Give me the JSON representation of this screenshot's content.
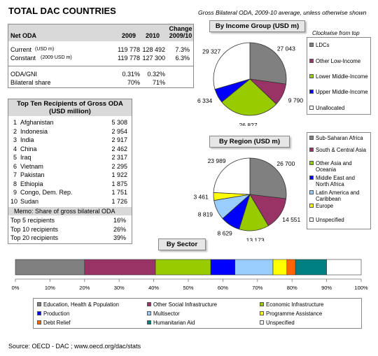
{
  "title": "TOTAL DAC COUNTRIES",
  "subtitle": "Gross Bilateral ODA, 2009-10 average, unless otherwise shown",
  "net_oda": {
    "header": {
      "label": "Net ODA",
      "y2009": "2009",
      "y2010": "2010",
      "change": "Change 2009/10"
    },
    "rows": [
      {
        "label": "Current",
        "unit": "(USD m)",
        "v2009": "119 778",
        "v2010": "128 492",
        "change": "7.3%"
      },
      {
        "label": "Constant",
        "unit": "(2009 USD m)",
        "v2009": "119 778",
        "v2010": "127 300",
        "change": "6.3%"
      },
      {
        "label": "ODA/GNI",
        "unit": "",
        "v2009": "0.31%",
        "v2010": "0.32%",
        "change": ""
      },
      {
        "label": "Bilateral share",
        "unit": "",
        "v2009": "70%",
        "v2010": "71%",
        "change": ""
      }
    ]
  },
  "top_ten": {
    "header_line1": "Top Ten Recipients of Gross ODA",
    "header_line2": "(USD million)",
    "rows": [
      {
        "rank": "1",
        "name": "Afghanistan",
        "value": "5 308"
      },
      {
        "rank": "2",
        "name": "Indonesia",
        "value": "2 954"
      },
      {
        "rank": "3",
        "name": "India",
        "value": "2 917"
      },
      {
        "rank": "4",
        "name": "China",
        "value": "2 462"
      },
      {
        "rank": "5",
        "name": "Iraq",
        "value": "2 317"
      },
      {
        "rank": "6",
        "name": "Vietnam",
        "value": "2 295"
      },
      {
        "rank": "7",
        "name": "Pakistan",
        "value": "1 922"
      },
      {
        "rank": "8",
        "name": "Ethiopia",
        "value": "1 875"
      },
      {
        "rank": "9",
        "name": "Congo, Dem. Rep.",
        "value": "1 751"
      },
      {
        "rank": "10",
        "name": "Sudan",
        "value": "1 726"
      }
    ],
    "memo_label": "Memo:  Share of gross bilateral ODA",
    "memo_rows": [
      {
        "label": "Top 5 recipients",
        "value": "16%"
      },
      {
        "label": "Top 10 recipients",
        "value": "26%"
      },
      {
        "label": "Top 20 recipients",
        "value": "39%"
      }
    ]
  },
  "clockwise_note": "Clockwise from top",
  "source": "Source:   OECD - DAC ; www.oecd.org/dac/stats",
  "chart_data": [
    {
      "type": "pie",
      "title": "By Income Group (USD m)",
      "labels": [
        "LDCs",
        "Other Low-Income",
        "Lower Middle-Income",
        "Upper Middle-Income",
        "Unallocated"
      ],
      "values": [
        27043,
        9790,
        26827,
        6334,
        29327
      ],
      "value_labels": [
        "27 043",
        "9 790",
        "26 827",
        "6 334",
        "29 327"
      ],
      "colors": [
        "#808080",
        "#993366",
        "#99cc00",
        "#0000ff",
        "#ffffff"
      ]
    },
    {
      "type": "pie",
      "title": "By Region (USD m)",
      "labels": [
        "Sub-Saharan Africa",
        "South & Central Asia",
        "Other Asia and Oceania",
        "Middle East and North Africa",
        "Latin America and Caribbean",
        "Europe",
        "Unspecified"
      ],
      "values": [
        26700,
        14551,
        13173,
        8629,
        8819,
        3461,
        23989
      ],
      "value_labels": [
        "26 700",
        "14 551",
        "13 173",
        "8 629",
        "8 819",
        "3 461",
        "23 989"
      ],
      "colors": [
        "#808080",
        "#993366",
        "#99cc00",
        "#0000ff",
        "#99ccff",
        "#ffff00",
        "#ffffff"
      ]
    },
    {
      "type": "bar",
      "title": "By Sector",
      "labels": [
        "Education, Health & Population",
        "Other Social Infrastructure",
        "Economic Infrastructure",
        "Production",
        "Multisector",
        "Programme Assistance",
        "Debt Relief",
        "Humanitarian Aid",
        "Unspecified"
      ],
      "values": [
        20,
        20.5,
        16,
        7,
        11,
        4,
        2.5,
        9,
        10
      ],
      "colors": [
        "#808080",
        "#993366",
        "#99cc00",
        "#0000ff",
        "#99ccff",
        "#ffff00",
        "#ff6600",
        "#008080",
        "#ffffff"
      ],
      "x_ticks": [
        "0%",
        "10%",
        "20%",
        "30%",
        "40%",
        "50%",
        "60%",
        "70%",
        "80%",
        "90%",
        "100%"
      ],
      "xlim": [
        0,
        100
      ]
    }
  ]
}
